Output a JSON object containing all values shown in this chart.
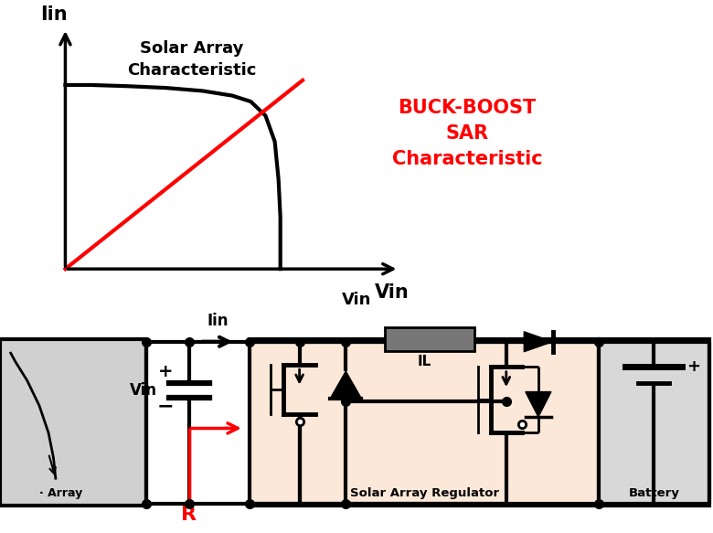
{
  "fig_width": 7.8,
  "fig_height": 5.83,
  "dpi": 100,
  "bg_color": "#ffffff",
  "top": {
    "solar_color": "#000000",
    "sar_color": "#ff0000",
    "xlabel": "Vin",
    "ylabel": "Iin",
    "solar_label": "Solar Array\nCharacteristic",
    "sar_label": "BUCK-BOOST\nSAR\nCharacteristic"
  },
  "bot": {
    "sar_bg": "#fce8d8",
    "sa_bg": "#d0d0d0",
    "bat_bg": "#d8d8d8",
    "wire": "#000000",
    "red": "#ff0000",
    "lw_main": 3.0,
    "lw_thin": 2.0,
    "label_array": "· Array",
    "label_sar": "Solar Array Regulator",
    "label_battery": "Battery",
    "label_iin": "Iin",
    "label_vin": "Vin",
    "label_r": "R",
    "label_il": "IL"
  }
}
